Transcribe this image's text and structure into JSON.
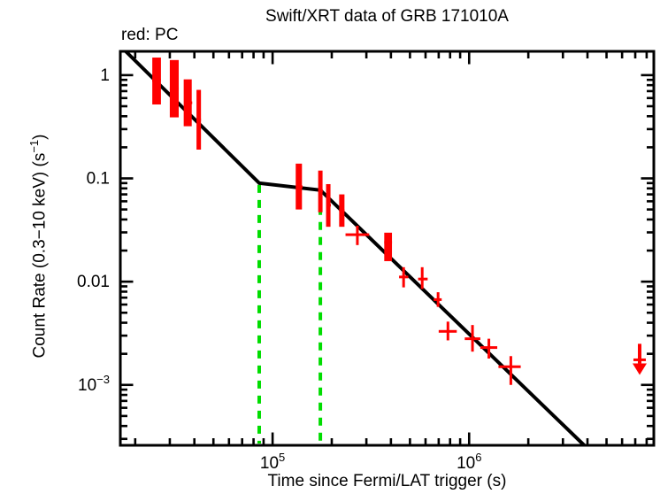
{
  "header": {
    "title": "Swift/XRT data of GRB 171010A",
    "mode_label": "red: PC"
  },
  "axes": {
    "x_label": "Time since Fermi/LAT trigger (s)",
    "y_label_prefix": "Count Rate (0.3−10 keV) (s",
    "y_label_sup": "−1",
    "y_label_suffix": ")"
  },
  "colors": {
    "background": "#ffffff",
    "frame": "#000000",
    "fit": "#000000",
    "data": "#ff0000",
    "break_lines": "#00dd00"
  },
  "chart_data": {
    "type": "scatter",
    "title": "Swift/XRT data of GRB 171010A",
    "xlabel": "Time since Fermi/LAT trigger (s)",
    "ylabel": "Count Rate (0.3−10 keV) (s^−1)",
    "series_name": "PC mode count rate with 1-sigma errors",
    "x_scale": "log",
    "y_scale": "log",
    "xlim": [
      16800,
      8700000
    ],
    "ylim": [
      0.00026,
      1.7
    ],
    "grid": false,
    "x_ticks": [
      {
        "value": 100000,
        "label": "10^5"
      },
      {
        "value": 1000000,
        "label": "10^6"
      }
    ],
    "y_ticks": [
      {
        "value": 1,
        "label": "1"
      },
      {
        "value": 0.1,
        "label": "0.1"
      },
      {
        "value": 0.01,
        "label": "0.01"
      },
      {
        "value": 0.001,
        "label": "10^−3"
      }
    ],
    "points": [
      {
        "t": 25700,
        "t_lo": 24400,
        "t_hi": 27000,
        "r": 0.89,
        "r_lo": 0.52,
        "r_hi": 1.48,
        "wide": true
      },
      {
        "t": 31600,
        "t_lo": 30000,
        "t_hi": 33300,
        "r": 0.74,
        "r_lo": 0.39,
        "r_hi": 1.4,
        "wide": true
      },
      {
        "t": 37000,
        "t_lo": 35500,
        "t_hi": 39000,
        "r": 0.54,
        "r_lo": 0.32,
        "r_hi": 0.91,
        "wide": true
      },
      {
        "t": 42100,
        "t_lo": 41000,
        "t_hi": 43200,
        "r": 0.37,
        "r_lo": 0.19,
        "r_hi": 0.72,
        "wide": true
      },
      {
        "t": 136000,
        "t_lo": 132000,
        "t_hi": 142000,
        "r": 0.083,
        "r_lo": 0.05,
        "r_hi": 0.139,
        "wide": true
      },
      {
        "t": 175000,
        "t_lo": 171000,
        "t_hi": 180000,
        "r": 0.076,
        "r_lo": 0.047,
        "r_hi": 0.119,
        "wide": true
      },
      {
        "t": 192000,
        "t_lo": 188000,
        "t_hi": 198000,
        "r": 0.055,
        "r_lo": 0.034,
        "r_hi": 0.088,
        "wide": true
      },
      {
        "t": 225000,
        "t_lo": 218000,
        "t_hi": 232000,
        "r": 0.049,
        "r_lo": 0.034,
        "r_hi": 0.07,
        "wide": true
      },
      {
        "t": 270000,
        "t_lo": 235000,
        "t_hi": 310000,
        "r": 0.0285,
        "r_lo": 0.0226,
        "r_hi": 0.0348,
        "wide": false
      },
      {
        "t": 387000,
        "t_lo": 370000,
        "t_hi": 405000,
        "r": 0.024,
        "r_lo": 0.0158,
        "r_hi": 0.0298,
        "wide": true
      },
      {
        "t": 464000,
        "t_lo": 440000,
        "t_hi": 490000,
        "r": 0.0111,
        "r_lo": 0.0088,
        "r_hi": 0.0138,
        "wide": false
      },
      {
        "t": 577000,
        "t_lo": 550000,
        "t_hi": 615000,
        "r": 0.0106,
        "r_lo": 0.0085,
        "r_hi": 0.0138,
        "wide": false
      },
      {
        "t": 695000,
        "t_lo": 660000,
        "t_hi": 725000,
        "r": 0.0067,
        "r_lo": 0.0057,
        "r_hi": 0.0079,
        "wide": false
      },
      {
        "t": 780000,
        "t_lo": 700000,
        "t_hi": 865000,
        "r": 0.0033,
        "r_lo": 0.0027,
        "r_hi": 0.0041,
        "wide": false
      },
      {
        "t": 1040000,
        "t_lo": 950000,
        "t_hi": 1140000,
        "r": 0.0028,
        "r_lo": 0.0021,
        "r_hi": 0.0038,
        "wide": false
      },
      {
        "t": 1260000,
        "t_lo": 1140000,
        "t_hi": 1390000,
        "r": 0.0023,
        "r_lo": 0.0018,
        "r_hi": 0.0028,
        "wide": false
      },
      {
        "t": 1630000,
        "t_lo": 1410000,
        "t_hi": 1830000,
        "r": 0.0015,
        "r_lo": 0.001,
        "r_hi": 0.0019,
        "wide": false
      }
    ],
    "fit_line": [
      [
        17900,
        1.7
      ],
      [
        85500,
        0.09
      ],
      [
        175000,
        0.077
      ],
      [
        3850000,
        0.00026
      ]
    ],
    "fit_break_times": [
      85500,
      175000
    ],
    "upper_limit": {
      "t": 7370000,
      "rate_top": 0.0025,
      "rate_bar": 0.00175,
      "rate_tip": 0.00125
    }
  }
}
